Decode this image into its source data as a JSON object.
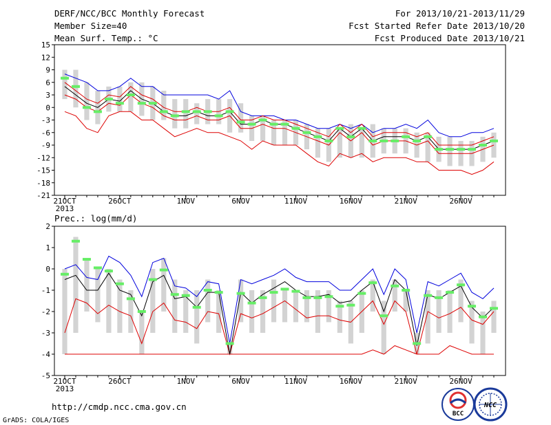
{
  "header": {
    "title": "DERF/NCC/BCC Monthly Forecast",
    "member_size": "Member Size=40",
    "variable": "Mean Surf. Temp.: °C",
    "period": "For 2013/10/21-2013/11/29",
    "started": "Fcst Started Refer Date 2013/10/20",
    "produced": "Fcst Produced Date 2013/10/21"
  },
  "footer": {
    "url": "http://cmdp.ncc.cma.gov.cn",
    "grads": "GrADS: COLA/IGES",
    "logo1_text": "BCC",
    "logo2_text": "NCC"
  },
  "colors": {
    "box": "#d3d3d3",
    "median": "#66ee66",
    "mean": "#000000",
    "upper": "#0000dd",
    "lower": "#dd0000"
  },
  "chart_data": [
    {
      "type": "line",
      "title": "Mean Surf. Temp.: °C",
      "xlabels": [
        "21OCT",
        "26OCT",
        "1NOV",
        "6NOV",
        "11NOV",
        "16NOV",
        "21NOV",
        "26NOV"
      ],
      "xlabel_year": "2013",
      "xlabel_positions": [
        0,
        5,
        11,
        16,
        21,
        26,
        31,
        36
      ],
      "ylim": [
        -21,
        15
      ],
      "yticks": [
        15,
        12,
        9,
        6,
        3,
        0,
        -3,
        -6,
        -9,
        -12,
        -15,
        -18,
        -21
      ],
      "grid": false,
      "days": 40,
      "series": [
        {
          "name": "box_high",
          "values": [
            9,
            9,
            6,
            4,
            5,
            5,
            6,
            6,
            5,
            4,
            2,
            2,
            1,
            2,
            2,
            2,
            1,
            -2,
            -2,
            -3,
            -3,
            -3,
            -4,
            -5,
            -5,
            -5,
            -4,
            -5,
            -4,
            -5,
            -5,
            -5,
            -6,
            -6,
            -7,
            -7,
            -8,
            -8,
            -7,
            -6
          ]
        },
        {
          "name": "box_low",
          "values": [
            2,
            0,
            -3,
            -4,
            -1,
            -1,
            -1,
            -2,
            -3,
            -3,
            -5,
            -5,
            -4,
            -4,
            -4,
            -6,
            -6,
            -8,
            -8,
            -9,
            -9,
            -9,
            -10,
            -12,
            -13,
            -12,
            -12,
            -12,
            -12,
            -11,
            -11,
            -11,
            -12,
            -13,
            -13,
            -14,
            -14,
            -14,
            -13,
            -12
          ]
        },
        {
          "name": "median",
          "values": [
            7,
            5,
            0,
            -1,
            2,
            1,
            3,
            1,
            1,
            -1,
            -2,
            -1,
            -1,
            -1,
            -2,
            -1,
            -3.5,
            -4,
            -3,
            -4,
            -4,
            -5,
            -6,
            -7,
            -8,
            -5,
            -7,
            -5,
            -8,
            -8,
            -8,
            -7,
            -8,
            -7,
            -10,
            -10,
            -10,
            -10,
            -9,
            -8
          ]
        },
        {
          "name": "mean",
          "values": [
            5,
            3,
            1,
            0,
            2,
            1.5,
            4,
            2,
            1,
            -1,
            -2,
            -2,
            -1,
            -2,
            -2,
            -1,
            -4,
            -4,
            -3,
            -4,
            -4,
            -5,
            -6,
            -7,
            -8,
            -5,
            -7,
            -5,
            -8,
            -7,
            -7,
            -7,
            -8,
            -7,
            -10,
            -10,
            -10,
            -10,
            -9,
            -8
          ]
        },
        {
          "name": "upper",
          "values": [
            8,
            7,
            6,
            4,
            4,
            5,
            7,
            5,
            5,
            3,
            3,
            3,
            3,
            3,
            2,
            4,
            -1,
            -2,
            -2,
            -2,
            -3,
            -3,
            -4,
            -5,
            -5,
            -4,
            -5,
            -4,
            -6,
            -5,
            -5,
            -4,
            -5,
            -3,
            -6,
            -7,
            -7,
            -6,
            -6,
            -5
          ]
        },
        {
          "name": "lower",
          "values": [
            -1,
            -2,
            -5,
            -6,
            -2,
            -1,
            -1,
            -3,
            -3,
            -5,
            -7,
            -6,
            -5,
            -6,
            -6,
            -7,
            -8,
            -10,
            -8,
            -9,
            -9,
            -9,
            -11,
            -13,
            -14,
            -11,
            -12,
            -11,
            -13,
            -12,
            -12,
            -12,
            -13,
            -13,
            -15,
            -15,
            -15,
            -16,
            -15,
            -13
          ]
        },
        {
          "name": "mean_plus",
          "values": [
            6,
            4,
            2,
            1,
            3,
            2.5,
            5,
            3,
            2,
            0,
            -1,
            -1,
            0,
            -1,
            -1,
            0,
            -3,
            -3,
            -2,
            -3,
            -3,
            -4,
            -5,
            -6,
            -7,
            -4,
            -6,
            -4,
            -7,
            -6,
            -6,
            -6,
            -7,
            -6,
            -9,
            -9,
            -9,
            -9,
            -8,
            -7
          ]
        },
        {
          "name": "mean_minus",
          "values": [
            3,
            2,
            0,
            -1,
            1,
            0.5,
            3,
            1,
            0,
            -2,
            -3,
            -3,
            -2,
            -3,
            -3,
            -2,
            -5,
            -5,
            -4,
            -5,
            -5,
            -6,
            -7,
            -8,
            -9,
            -6,
            -8,
            -6,
            -9,
            -8,
            -8,
            -8,
            -9,
            -8,
            -11,
            -11,
            -11,
            -11,
            -10,
            -9
          ]
        }
      ]
    },
    {
      "type": "line",
      "title": "Prec.: log(mm/d)",
      "xlabels": [
        "21OCT",
        "26OCT",
        "1NOV",
        "6NOV",
        "11NOV",
        "16NOV",
        "21NOV",
        "26NOV"
      ],
      "xlabel_year": "2013",
      "xlabel_positions": [
        0,
        5,
        11,
        16,
        21,
        26,
        31,
        36
      ],
      "ylim": [
        -5,
        2
      ],
      "yticks": [
        2,
        1,
        0,
        -1,
        -2,
        -3,
        -4,
        -5
      ],
      "grid": false,
      "days": 40,
      "series": [
        {
          "name": "box_high",
          "values": [
            0,
            1.5,
            0.5,
            0,
            0,
            -0.5,
            -1,
            -2,
            0,
            0.5,
            -0.5,
            -1,
            -1,
            -0.5,
            -1,
            -3.5,
            -0.5,
            -1,
            -1,
            -0.5,
            -1,
            -1,
            -1,
            -1,
            -1,
            -1.5,
            -1.5,
            -1,
            -0.5,
            -1.5,
            -0.5,
            -1,
            -3,
            -1,
            -1,
            -1,
            -0.5,
            -1.5,
            -2,
            -1.5
          ]
        },
        {
          "name": "box_low",
          "values": [
            -4,
            -3,
            -2,
            -2.5,
            -3,
            -3,
            -3,
            -4,
            -3,
            -2,
            -3,
            -3,
            -3.5,
            -2.5,
            -3,
            -4,
            -2.5,
            -3,
            -3,
            -2.5,
            -2.5,
            -2.5,
            -2.5,
            -3,
            -2.5,
            -3,
            -3.5,
            -3,
            -2,
            -4,
            -2,
            -2,
            -4,
            -3.5,
            -3,
            -3,
            -2.5,
            -3.5,
            -4,
            -3
          ]
        },
        {
          "name": "median",
          "values": [
            -0.25,
            1.3,
            0.45,
            0.05,
            -0.1,
            -0.7,
            -1.4,
            -2,
            -0.5,
            -0.05,
            -1.2,
            -1.25,
            -1.8,
            -1,
            -1.1,
            -3.5,
            -1.15,
            -1.6,
            -1.35,
            -1.1,
            -0.95,
            -1.05,
            -1.35,
            -1.35,
            -1.3,
            -1.75,
            -1.7,
            -1.15,
            -0.65,
            -2.2,
            -0.8,
            -1,
            -3.5,
            -1.25,
            -1.35,
            -1.1,
            -0.75,
            -1.75,
            -2.25,
            -1.85
          ]
        },
        {
          "name": "mean",
          "values": [
            -0.5,
            -0.3,
            -1,
            -1,
            -0.2,
            -1,
            -1.2,
            -2.2,
            -0.6,
            -0.3,
            -1.4,
            -1.3,
            -1.8,
            -1.1,
            -1.1,
            -4,
            -1.1,
            -1.6,
            -1.2,
            -0.9,
            -0.6,
            -1,
            -1.3,
            -1.3,
            -1.2,
            -1.6,
            -1.5,
            -1,
            -0.6,
            -2,
            -0.5,
            -1,
            -3.6,
            -1.2,
            -1.4,
            -1.1,
            -0.8,
            -1.8,
            -2.3,
            -1.8
          ]
        },
        {
          "name": "upper",
          "values": [
            0,
            0.2,
            -0.4,
            -0.5,
            0.6,
            0.3,
            -0.3,
            -1.3,
            0.3,
            0.5,
            -0.8,
            -0.9,
            -1.3,
            -0.6,
            -0.7,
            -3.5,
            -0.5,
            -0.7,
            -0.5,
            -0.3,
            0,
            -0.4,
            -0.6,
            -0.6,
            -0.6,
            -1,
            -1,
            -0.5,
            0,
            -1.2,
            0,
            -0.5,
            -3,
            -0.6,
            -0.8,
            -0.5,
            -0.2,
            -1.1,
            -1.4,
            -0.9
          ]
        },
        {
          "name": "lower",
          "values": [
            -3,
            -1.4,
            -1.6,
            -2.1,
            -1.7,
            -2,
            -2.2,
            -3.5,
            -2,
            -1.6,
            -2.4,
            -2.5,
            -2.8,
            -2,
            -2.1,
            -4,
            -2.1,
            -2.3,
            -2.1,
            -1.8,
            -1.5,
            -1.9,
            -2.3,
            -2.2,
            -2.2,
            -2.4,
            -2.5,
            -2,
            -1.5,
            -2.6,
            -1.5,
            -2,
            -4,
            -2,
            -2.3,
            -2.1,
            -1.8,
            -2.4,
            -2.6,
            -2
          ]
        },
        {
          "name": "lower_floor",
          "values": [
            -4,
            -4,
            -4,
            -4,
            -4,
            -4,
            -4,
            -4,
            -4,
            -4,
            -4,
            -4,
            -4,
            -4,
            -4,
            -4,
            -4,
            -4,
            -4,
            -4,
            -4,
            -4,
            -4,
            -4,
            -4,
            -4,
            -4,
            -4,
            -3.8,
            -4,
            -3.6,
            -3.8,
            -4,
            -4,
            -4,
            -3.6,
            -3.8,
            -4,
            -4,
            -4
          ]
        }
      ]
    }
  ]
}
